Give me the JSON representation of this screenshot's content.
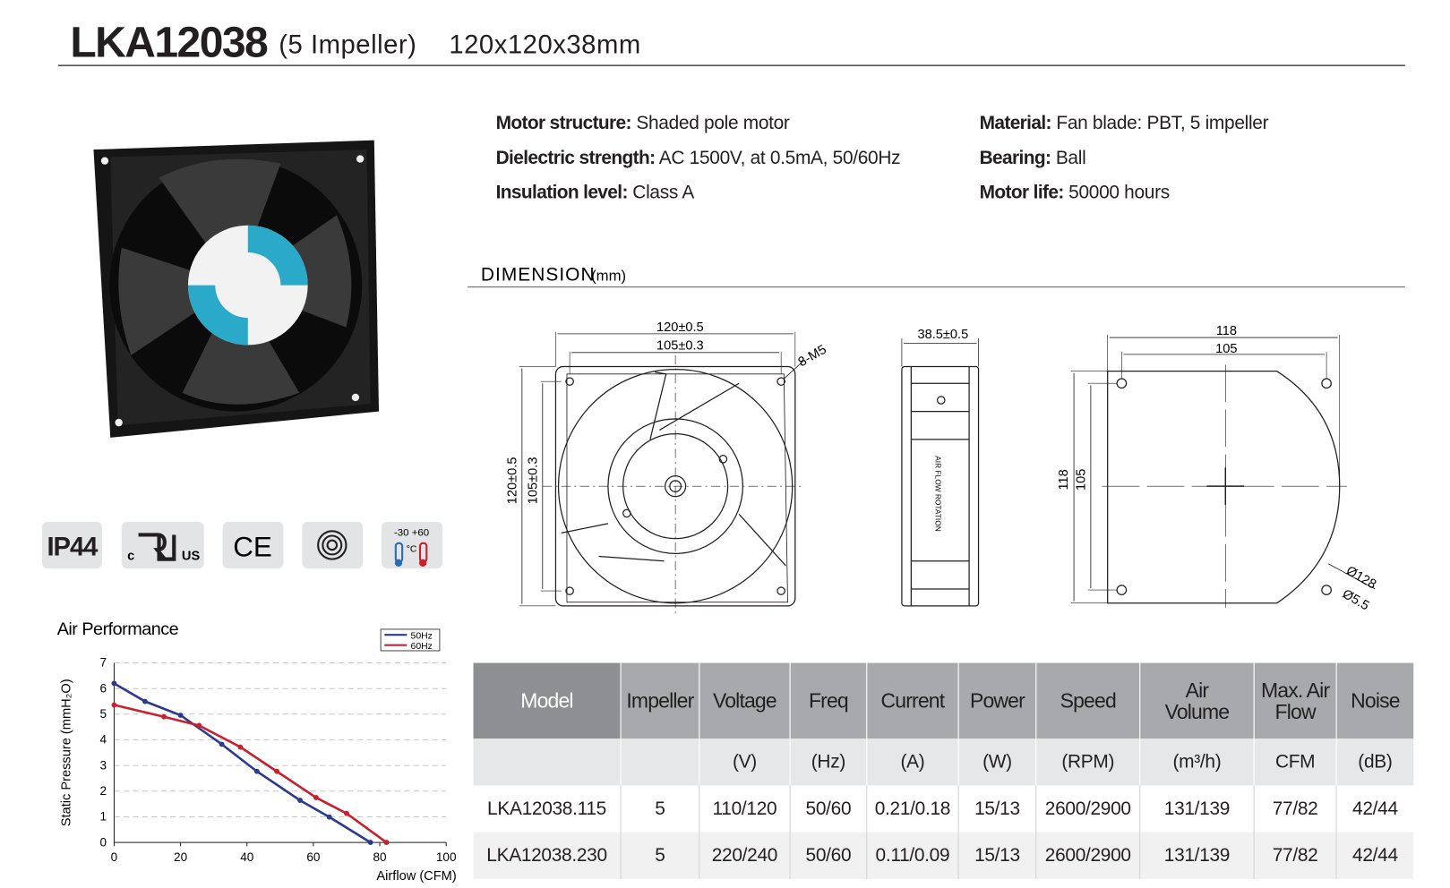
{
  "header": {
    "title": "LKA12038",
    "subtitle": "(5 Impeller)",
    "size": "120x120x38mm"
  },
  "specs": [
    {
      "label": "Motor structure:",
      "value": "Shaded pole motor"
    },
    {
      "label": "Dielectric strength:",
      "value": "AC 1500V, at 0.5mA, 50/60Hz"
    },
    {
      "label": "Insulation level:",
      "value": "Class A"
    },
    {
      "label": "Material:",
      "value": "Fan blade: PBT, 5 impeller"
    },
    {
      "label": "Bearing:",
      "value": "Ball"
    },
    {
      "label": "Motor life:",
      "value": "50000 hours"
    }
  ],
  "badges": {
    "ip": "IP44",
    "ul_left": "c",
    "ul_right": "US",
    "ce": "CE",
    "temp": "-30 +60",
    "temp_unit": "°C"
  },
  "dimension": {
    "heading": "DIMENSION",
    "unit": "(mm)",
    "front_outer": "120±0.5",
    "front_inner": "105±0.3",
    "screw": "8-M5",
    "front_outer_v": "120±0.5",
    "front_inner_v": "105±0.3",
    "depth": "38.5±0.5",
    "side_text": "AIR FLOW ROTATION",
    "back_outer": "118",
    "back_inner": "105",
    "back_outer_v": "118",
    "back_inner_v": "105",
    "diameter": "Ø128",
    "hole": "Ø5.5"
  },
  "chart_data": {
    "type": "line",
    "title": "Air Performance",
    "x_label": "Airflow (CFM)",
    "y_label": "Static Pressure (mmH₂O)",
    "xlim": [
      0,
      100
    ],
    "ylim": [
      0,
      7
    ],
    "xticks": [
      0,
      20,
      40,
      60,
      80,
      100
    ],
    "yticks": [
      0,
      1,
      2,
      3,
      4,
      5,
      6,
      7
    ],
    "grid": true,
    "legend": "top-right",
    "series": [
      {
        "name": "50Hz",
        "color": "#2b3a8f",
        "x": [
          0,
          9.3,
          20,
          32.4,
          43,
          56,
          64.8,
          77.2
        ],
        "values": [
          6.2,
          5.5,
          4.96,
          3.83,
          2.77,
          1.64,
          0.99,
          0
        ]
      },
      {
        "name": "60Hz",
        "color": "#c8202f",
        "x": [
          0,
          15,
          25.6,
          38,
          49,
          60.8,
          70,
          82
        ],
        "values": [
          5.36,
          4.9,
          4.56,
          3.72,
          2.77,
          1.75,
          1.13,
          0
        ]
      }
    ]
  },
  "table": {
    "headers": [
      "Model",
      "Impeller",
      "Voltage",
      "Freq",
      "Current",
      "Power",
      "Speed",
      "Air Volume",
      "Max. Air Flow",
      "Noise"
    ],
    "units": [
      null,
      null,
      "(V)",
      "(Hz)",
      "(A)",
      "(W)",
      "(RPM)",
      "(m³/h)",
      "CFM",
      "(dB)"
    ],
    "rows": [
      [
        "LKA12038.115",
        "5",
        "110/120",
        "50/60",
        "0.21/0.18",
        "15/13",
        "2600/2900",
        "131/139",
        "77/82",
        "42/44"
      ],
      [
        "LKA12038.230",
        "5",
        "220/240",
        "50/60",
        "0.11/0.09",
        "15/13",
        "2600/2900",
        "131/139",
        "77/82",
        "42/44"
      ]
    ]
  }
}
